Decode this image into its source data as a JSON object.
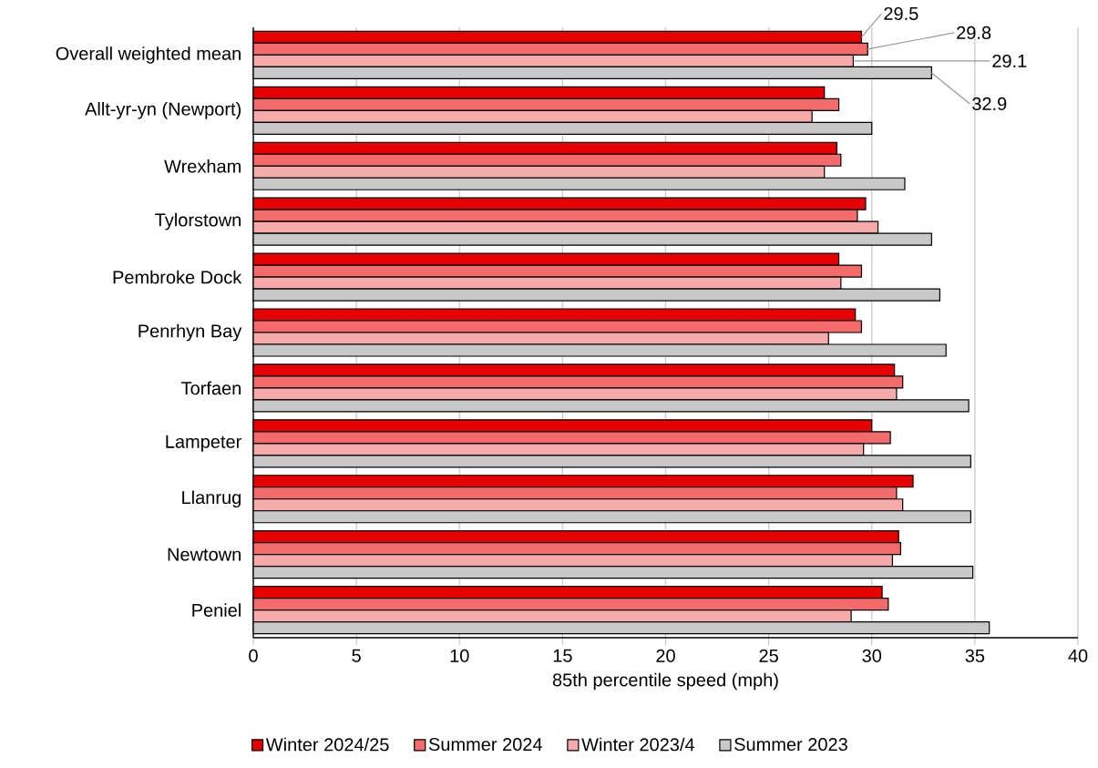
{
  "chart_data": {
    "type": "bar",
    "orientation": "horizontal",
    "categories": [
      "Overall weighted mean",
      "Allt-yr-yn (Newport)",
      "Wrexham",
      "Tylorstown",
      "Pembroke Dock",
      "Penrhyn Bay",
      "Torfaen",
      "Lampeter",
      "Llanrug",
      "Newtown",
      "Peniel"
    ],
    "series": [
      {
        "name": "Winter 2024/25",
        "color": "#e60000",
        "values": [
          29.5,
          27.7,
          28.3,
          29.7,
          28.4,
          29.2,
          31.1,
          30.0,
          32.0,
          31.3,
          30.5
        ],
        "value_labels": [
          "29.5",
          null,
          null,
          null,
          null,
          null,
          null,
          null,
          null,
          null,
          null
        ]
      },
      {
        "name": "Summer 2024",
        "color": "#f56a6a",
        "values": [
          29.8,
          28.4,
          28.5,
          29.3,
          29.5,
          29.5,
          31.5,
          30.9,
          31.2,
          31.4,
          30.8
        ],
        "value_labels": [
          "29.8",
          null,
          null,
          null,
          null,
          null,
          null,
          null,
          null,
          null,
          null
        ]
      },
      {
        "name": "Winter 2023/4",
        "color": "#f7aaaa",
        "values": [
          29.1,
          27.1,
          27.7,
          30.3,
          28.5,
          27.9,
          31.2,
          29.6,
          31.5,
          31.0,
          29.0
        ],
        "value_labels": [
          "29.1",
          null,
          null,
          null,
          null,
          null,
          null,
          null,
          null,
          null,
          null
        ]
      },
      {
        "name": "Summer 2023",
        "color": "#c8c8c8",
        "values": [
          32.9,
          30.0,
          31.6,
          32.9,
          33.3,
          33.6,
          34.7,
          34.8,
          34.8,
          34.9,
          35.7
        ],
        "value_labels": [
          "32.9",
          null,
          null,
          null,
          null,
          null,
          null,
          null,
          null,
          null,
          null
        ]
      }
    ],
    "xlabel": "85th percentile speed (mph)",
    "xlim": [
      0,
      40
    ],
    "xticks": [
      0,
      5,
      10,
      15,
      20,
      25,
      30,
      35,
      40
    ],
    "grid": "x",
    "legend": "bottom"
  }
}
